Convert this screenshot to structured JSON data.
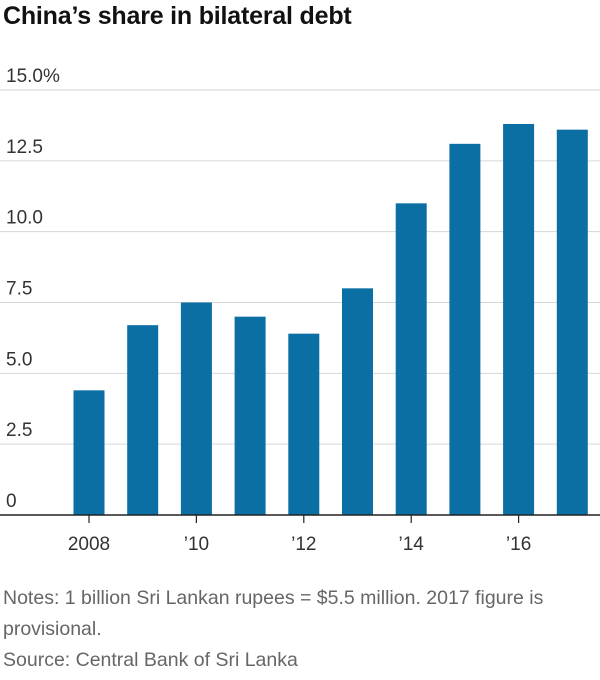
{
  "title": "China’s share in bilateral debt",
  "chart_data": {
    "type": "bar",
    "title": "China’s share in bilateral debt",
    "x": [
      2008,
      2009,
      2010,
      2011,
      2012,
      2013,
      2014,
      2015,
      2016,
      2017
    ],
    "values": [
      4.4,
      6.7,
      7.5,
      7.0,
      6.4,
      8.0,
      11.0,
      13.1,
      13.8,
      13.6
    ],
    "ylim": [
      0,
      15
    ],
    "yticks": [
      0,
      2.5,
      5.0,
      7.5,
      10.0,
      12.5,
      15.0
    ],
    "ytick_labels": [
      "0",
      "2.5",
      "5.0",
      "7.5",
      "10.0",
      "12.5",
      "15.0%"
    ],
    "xtick_labels": [
      {
        "x": 2008,
        "label": "2008"
      },
      {
        "x": 2010,
        "label": "’10"
      },
      {
        "x": 2012,
        "label": "’12"
      },
      {
        "x": 2014,
        "label": "’14"
      },
      {
        "x": 2016,
        "label": "’16"
      }
    ],
    "xlabel": "",
    "ylabel": "",
    "grid": true,
    "colors": {
      "bar": "#0b6fa4",
      "grid": "#d6d6d6",
      "axis": "#222222"
    }
  },
  "notes": {
    "line1": "Notes: 1 billion Sri Lankan rupees = $5.5 million. 2017 figure is provisional.",
    "source": "Source: Central Bank of Sri Lanka"
  }
}
